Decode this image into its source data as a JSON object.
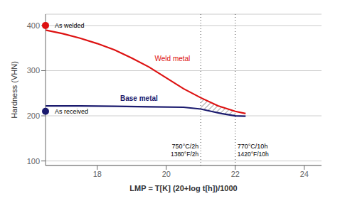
{
  "chart_data": {
    "type": "line",
    "xlabel": "LMP = T[K] (20+log t[h])/1000",
    "ylabel": "Hardness (VHN)",
    "xlim": [
      16.5,
      24.5
    ],
    "ylim": [
      90,
      425
    ],
    "xticks": [
      18,
      20,
      22,
      24
    ],
    "yticks": [
      100,
      200,
      300,
      400
    ],
    "grid": "y",
    "series": [
      {
        "name": "Weld metal",
        "color": "#dd1111",
        "x": [
          16.5,
          17.0,
          17.5,
          18.0,
          18.5,
          19.0,
          19.5,
          20.0,
          20.5,
          21.0,
          21.5,
          22.0,
          22.3
        ],
        "values": [
          390,
          382,
          372,
          360,
          346,
          328,
          308,
          284,
          260,
          240,
          222,
          210,
          205
        ]
      },
      {
        "name": "Base metal",
        "color": "#1a1a6e",
        "x": [
          16.5,
          17.5,
          18.5,
          19.5,
          20.5,
          21.0,
          21.3,
          21.6,
          22.0,
          22.3
        ],
        "values": [
          222,
          222,
          221,
          220,
          219,
          215,
          210,
          205,
          200,
          199
        ]
      }
    ],
    "markers": [
      {
        "label": "As welded",
        "x": 16.5,
        "y": 400,
        "color": "#dd1111"
      },
      {
        "label": "As received",
        "x": 16.5,
        "y": 210,
        "color": "#1a1a6e"
      }
    ],
    "vlines": [
      {
        "x": 21.0,
        "line_style": "dotted",
        "labels": [
          "750°C/2h",
          "1380°F/2h"
        ]
      },
      {
        "x": 22.0,
        "line_style": "dotted",
        "labels": [
          "770°C/10h",
          "1420°F/10h"
        ]
      }
    ],
    "band": {
      "between": [
        "Weld metal",
        "Base metal"
      ],
      "color": "#222222"
    }
  }
}
